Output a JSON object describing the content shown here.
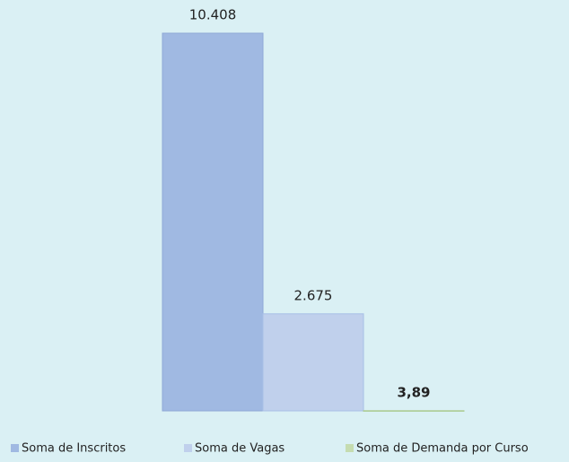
{
  "chart_data": {
    "type": "bar",
    "categories": [
      null
    ],
    "series": [
      {
        "name": "Soma de Inscritos",
        "color": "#a0b9e2",
        "values": [
          10408
        ],
        "value_labels": [
          "10.408"
        ]
      },
      {
        "name": "Soma de Vagas",
        "color": "#c0d0ec",
        "values": [
          2675
        ],
        "value_labels": [
          "2.675"
        ]
      },
      {
        "name": "Soma de Demanda por Curso",
        "color": "#c5dcb0",
        "values": [
          3.89
        ],
        "value_labels": [
          "3,89"
        ]
      }
    ],
    "grid": false,
    "legend": "bottom"
  }
}
